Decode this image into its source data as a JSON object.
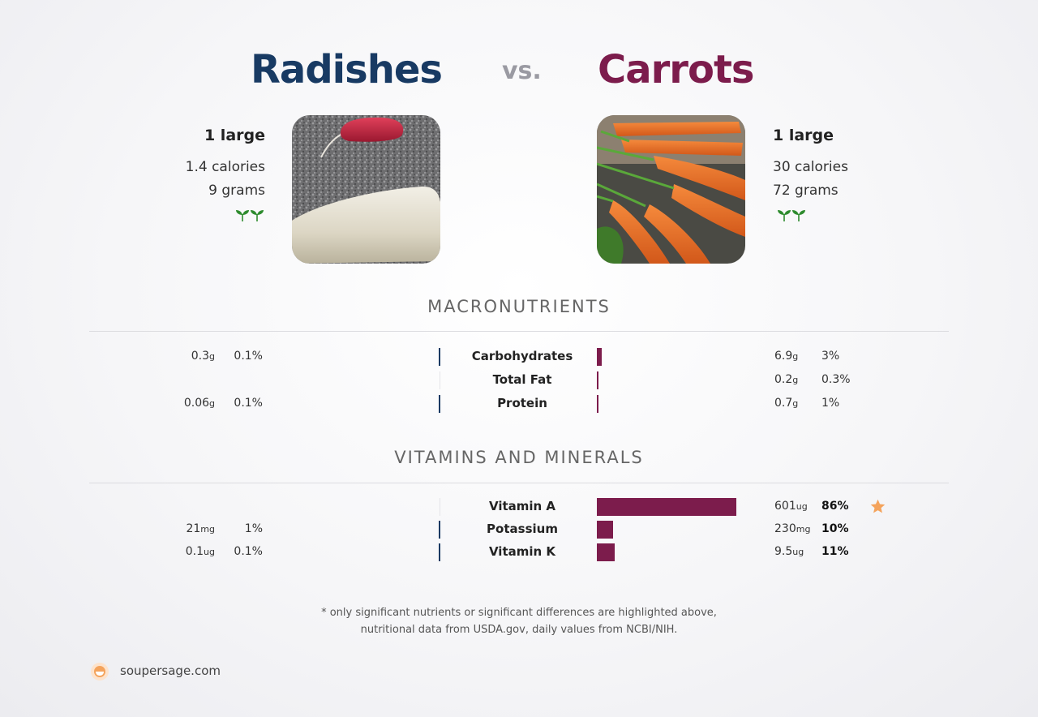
{
  "header": {
    "left_title": "Radishes",
    "vs_label": "vs.",
    "right_title": "Carrots"
  },
  "left_food": {
    "serving": "1 large",
    "calories": "1.4 calories",
    "grams": "9 grams",
    "icon": "sprout-icon",
    "color": "#183a63"
  },
  "right_food": {
    "serving": "1 large",
    "calories": "30 calories",
    "grams": "72 grams",
    "icon": "sprout-icon",
    "color": "#7c1c4c"
  },
  "sections": {
    "macro_title": "MACRONUTRIENTS",
    "vitamin_title": "VITAMINS AND MINERALS"
  },
  "chart_data": {
    "type": "bar",
    "series": [
      {
        "name": "Radishes",
        "color": "#183a63"
      },
      {
        "name": "Carrots",
        "color": "#7c1c4c"
      }
    ],
    "macronutrients": [
      {
        "name": "Carbohydrates",
        "left_value": "0.3",
        "left_unit": "g",
        "left_pct": "0.1%",
        "left_dv": 0.1,
        "right_value": "6.9",
        "right_unit": "g",
        "right_pct": "3%",
        "right_dv": 3
      },
      {
        "name": "Total Fat",
        "left_value": "",
        "left_unit": "",
        "left_pct": "",
        "left_dv": 0,
        "right_value": "0.2",
        "right_unit": "g",
        "right_pct": "0.3%",
        "right_dv": 0.3
      },
      {
        "name": "Protein",
        "left_value": "0.06",
        "left_unit": "g",
        "left_pct": "0.1%",
        "left_dv": 0.1,
        "right_value": "0.7",
        "right_unit": "g",
        "right_pct": "1%",
        "right_dv": 1
      }
    ],
    "vitamins": [
      {
        "name": "Vitamin A",
        "left_value": "",
        "left_unit": "",
        "left_pct": "",
        "left_dv": 0,
        "right_value": "601",
        "right_unit": "ug",
        "right_pct": "86%",
        "right_dv": 86,
        "star": true
      },
      {
        "name": "Potassium",
        "left_value": "21",
        "left_unit": "mg",
        "left_pct": "1%",
        "left_dv": 1,
        "right_value": "230",
        "right_unit": "mg",
        "right_pct": "10%",
        "right_dv": 10,
        "star": false
      },
      {
        "name": "Vitamin K",
        "left_value": "0.1",
        "left_unit": "ug",
        "left_pct": "0.1%",
        "left_dv": 0.1,
        "right_value": "9.5",
        "right_unit": "ug",
        "right_pct": "11%",
        "right_dv": 11,
        "star": false
      }
    ]
  },
  "footnote": {
    "line1": "* only significant nutrients or significant differences are highlighted above,",
    "line2": "nutritional data from USDA.gov, daily values from NCBI/NIH."
  },
  "brand": {
    "name": "soupersage.com",
    "icon": "soupersage-logo-icon",
    "accent": "#f4a35c"
  }
}
